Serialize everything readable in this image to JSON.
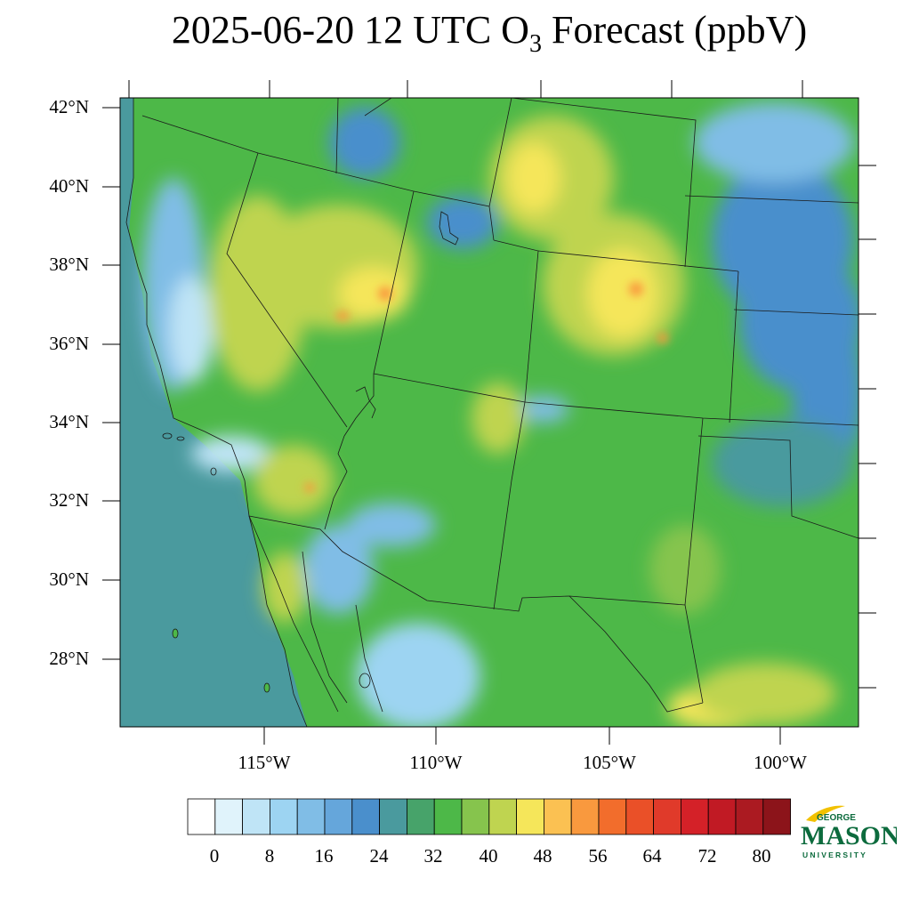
{
  "title": {
    "prefix": "2025-06-20 12 UTC O",
    "subscript": "3",
    "suffix": " Forecast (ppbV)"
  },
  "map": {
    "lat_labels": [
      "42°N",
      "40°N",
      "38°N",
      "36°N",
      "34°N",
      "32°N",
      "30°N",
      "28°N"
    ],
    "lon_labels": [
      "115°W",
      "110°W",
      "105°W",
      "100°W"
    ]
  },
  "colorbar": {
    "labels": [
      "0",
      "8",
      "16",
      "24",
      "32",
      "40",
      "48",
      "56",
      "64",
      "72",
      "80"
    ],
    "colors": [
      "#ffffff",
      "#e0f3fb",
      "#bfe4f6",
      "#9dd4f2",
      "#80bde6",
      "#65a6db",
      "#4a8fcc",
      "#4a9a9e",
      "#47a36a",
      "#4db848",
      "#86c44d",
      "#bfd450",
      "#f5e65a",
      "#fbc152",
      "#f9993e",
      "#f26d2c",
      "#ea5028",
      "#e03a2a",
      "#d42128",
      "#c11a24",
      "#ab1a21",
      "#8c141a"
    ]
  },
  "logo": {
    "line1": "GEORGE",
    "line2": "MASON",
    "line3": "UNIVERSITY"
  },
  "palette": {
    "ocean": "#4a9a9e",
    "low_blue": "#4a8fcc",
    "green": "#4db848",
    "yellow": "#f5e65a",
    "orange": "#f9993e",
    "brand_green": "#0c6b3d",
    "brand_gold": "#f2c100"
  }
}
